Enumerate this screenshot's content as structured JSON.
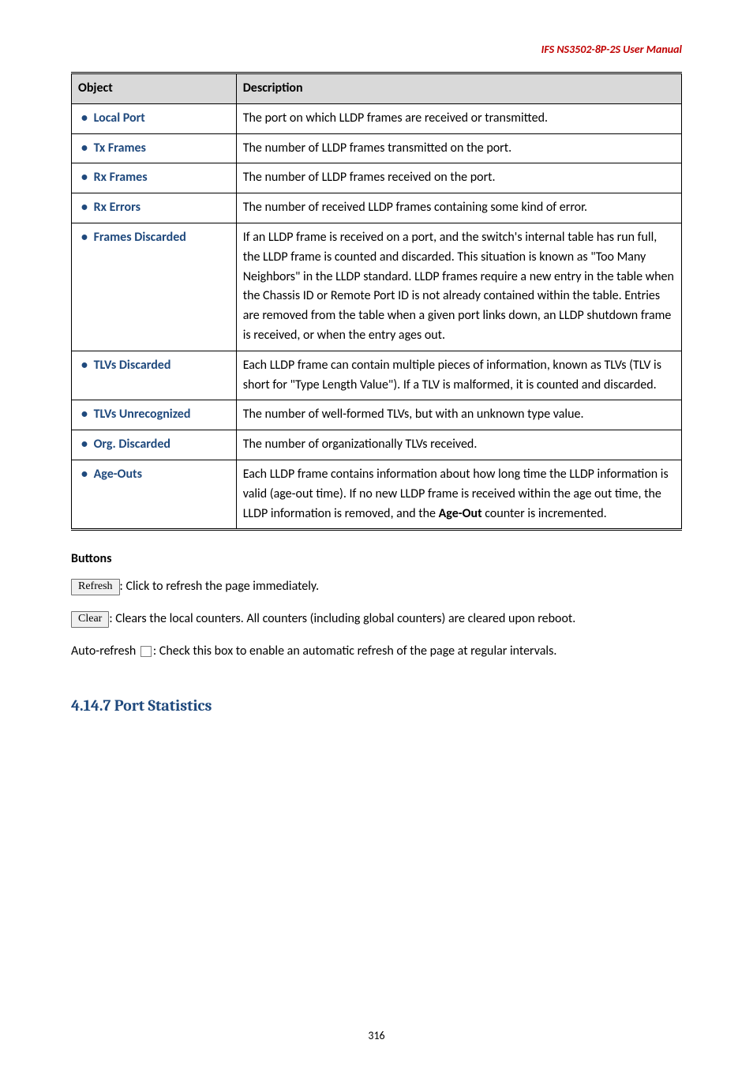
{
  "runningHeader": "IFS  NS3502-8P-2S  User  Manual",
  "tableHeaders": {
    "object": "Object",
    "description": "Description"
  },
  "rows": [
    {
      "label": "Local Port",
      "desc": "The port on which LLDP frames are received or transmitted."
    },
    {
      "label": "Tx Frames",
      "desc": "The number of LLDP frames transmitted on the port."
    },
    {
      "label": "Rx Frames",
      "desc": "The number of LLDP frames received on the port."
    },
    {
      "label": "Rx Errors",
      "desc": "The number of received LLDP frames containing some kind of error."
    },
    {
      "label": "Frames Discarded",
      "desc": "If an LLDP frame is received on a port, and the switch's internal table has run full, the LLDP frame is counted and discarded. This situation is known as \"Too Many Neighbors\" in the LLDP standard. LLDP frames require a new entry in the table when the Chassis ID or Remote Port ID is not already contained within the table. Entries are removed from the table when a given port links down, an LLDP shutdown frame is received, or when the entry ages out."
    },
    {
      "label": "TLVs Discarded",
      "desc": "Each LLDP frame can contain multiple pieces of information, known as TLVs (TLV is short for \"Type Length Value\"). If a TLV is malformed, it is counted and discarded."
    },
    {
      "label": "TLVs Unrecognized",
      "desc": "The number of well-formed TLVs, but with an unknown type value."
    },
    {
      "label": "Org. Discarded",
      "desc": "The number of organizationally TLVs received."
    },
    {
      "label": "Age-Outs",
      "desc_html": "Each LLDP frame contains information about how long time the LLDP information is valid (age-out time). If no new LLDP frame is received within the age out time, the LLDP information is removed, and the <b>Age-Out</b> counter is incremented."
    }
  ],
  "buttons": {
    "heading": "Buttons",
    "refreshLabel": "Refresh",
    "refreshText": ": Click to refresh the page immediately.",
    "clearLabel": "Clear",
    "clearText": ": Clears the local counters. All counters (including global counters) are cleared upon reboot.",
    "autoRefreshPrefix": "Auto-refresh ",
    "autoRefreshText": ": Check this box to enable an automatic refresh of the page at regular intervals."
  },
  "sectionHeading": "4.14.7 Port Statistics",
  "pageNumber": "316"
}
